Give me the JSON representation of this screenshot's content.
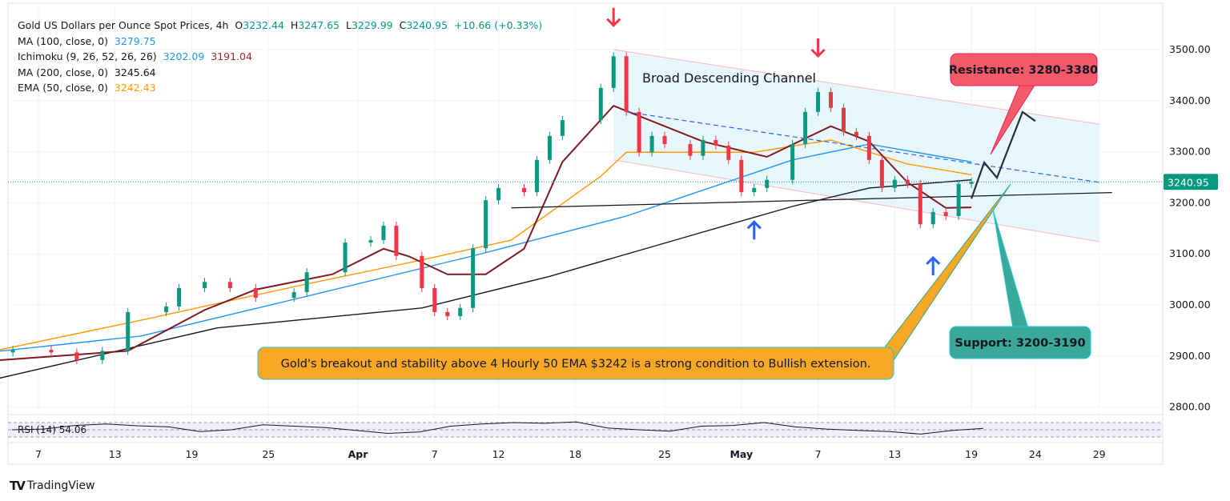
{
  "header": {
    "symbol": "Gold US Dollars per Ounce Spot Prices, 4h",
    "o_label": "O",
    "open": "3232.44",
    "h_label": "H",
    "high": "3247.65",
    "l_label": "L",
    "low": "3229.99",
    "c_label": "C",
    "close": "3240.95",
    "change": "+10.66 (+0.33%)"
  },
  "indicators": [
    {
      "label": "MA (100, close, 0)",
      "values": [
        "3279.75"
      ],
      "color": "#2196f3"
    },
    {
      "label": "Ichimoku (9, 26, 52, 26, 26)",
      "values": [
        "3202.09",
        "3191.04"
      ],
      "color": "#2196f3"
    },
    {
      "label": "MA (200, close, 0)",
      "values": [
        "3245.64"
      ],
      "color": "#131722"
    },
    {
      "label": "EMA (50, close, 0)",
      "values": [
        "3242.43"
      ],
      "color": "#ff9800"
    }
  ],
  "branding": "TradingView",
  "colors": {
    "up": "#089981",
    "down": "#f23645",
    "ma100": "#2196f3",
    "ma200": "#131722",
    "ema50": "#ff9800",
    "kijun": "#801922",
    "channel": "#e0f4f9",
    "resistance": "#f45b69",
    "support": "#3aa99a",
    "callout": "#f9a825"
  },
  "chart_data": {
    "type": "candlestick",
    "title": "Gold US Dollars per Ounce Spot Prices, 4h",
    "ylim": [
      2780,
      3560
    ],
    "y_ticks": [
      "3500.00",
      "3400.00",
      "3300.00",
      "3200.00",
      "3100.00",
      "3000.00",
      "2900.00",
      "2800.00"
    ],
    "x_ticks": [
      {
        "label": "7",
        "date": "Mar 7"
      },
      {
        "label": "13",
        "date": "Mar 13"
      },
      {
        "label": "19",
        "date": "Mar 19"
      },
      {
        "label": "25",
        "date": "Mar 25"
      },
      {
        "label": "Apr",
        "date": "Apr 1"
      },
      {
        "label": "7",
        "date": "Apr 7"
      },
      {
        "label": "12",
        "date": "Apr 12"
      },
      {
        "label": "18",
        "date": "Apr 18"
      },
      {
        "label": "25",
        "date": "Apr 25"
      },
      {
        "label": "May",
        "date": "May 1"
      },
      {
        "label": "7",
        "date": "May 7"
      },
      {
        "label": "13",
        "date": "May 13"
      },
      {
        "label": "19",
        "date": "May 19"
      },
      {
        "label": "24",
        "date": "May 24"
      },
      {
        "label": "29",
        "date": "May 29"
      }
    ],
    "last_price": "3240.95",
    "close": [
      [
        "Mar 5",
        2912
      ],
      [
        "Mar 8",
        2907
      ],
      [
        "Mar 10",
        2892
      ],
      [
        "Mar 12",
        2910
      ],
      [
        "Mar 14",
        2986
      ],
      [
        "Mar 17",
        2997
      ],
      [
        "Mar 18",
        3033
      ],
      [
        "Mar 20",
        3045
      ],
      [
        "Mar 22",
        3033
      ],
      [
        "Mar 24",
        3014
      ],
      [
        "Mar 27",
        3025
      ],
      [
        "Mar 28",
        3064
      ],
      [
        "Mar 31",
        3122
      ],
      [
        "Apr 2",
        3127
      ],
      [
        "Apr 3",
        3155
      ],
      [
        "Apr 4",
        3096
      ],
      [
        "Apr 6",
        3033
      ],
      [
        "Apr 7",
        2986
      ],
      [
        "Apr 8",
        2978
      ],
      [
        "Apr 9",
        2994
      ],
      [
        "Apr 10",
        3111
      ],
      [
        "Apr 11",
        3205
      ],
      [
        "Apr 12",
        3229
      ],
      [
        "Apr 14",
        3221
      ],
      [
        "Apr 15",
        3284
      ],
      [
        "Apr 16",
        3331
      ],
      [
        "Apr 17",
        3362
      ],
      [
        "Apr 20",
        3425
      ],
      [
        "Apr 21",
        3487
      ],
      [
        "Apr 22",
        3378
      ],
      [
        "Apr 23",
        3299
      ],
      [
        "Apr 24",
        3331
      ],
      [
        "Apr 25",
        3315
      ],
      [
        "Apr 27",
        3292
      ],
      [
        "Apr 28",
        3323
      ],
      [
        "Apr 29",
        3312
      ],
      [
        "Apr 30",
        3284
      ],
      [
        "May 1",
        3221
      ],
      [
        "May 2",
        3229
      ],
      [
        "May 3",
        3245
      ],
      [
        "May 5",
        3315
      ],
      [
        "May 6",
        3378
      ],
      [
        "May 7",
        3417
      ],
      [
        "May 8",
        3386
      ],
      [
        "May 9",
        3339
      ],
      [
        "May 10",
        3331
      ],
      [
        "May 11",
        3284
      ],
      [
        "May 12",
        3229
      ],
      [
        "May 13",
        3245
      ],
      [
        "May 14",
        3237
      ],
      [
        "May 15",
        3158
      ],
      [
        "May 16",
        3182
      ],
      [
        "May 17",
        3174
      ],
      [
        "May 18",
        3237
      ],
      [
        "May 19",
        3241
      ]
    ],
    "series": [
      {
        "name": "MA (100, close, 0)",
        "color": "#2196f3",
        "points": [
          [
            "Mar 3",
            2907
          ],
          [
            "Mar 15",
            2939
          ],
          [
            "Mar 28",
            3017
          ],
          [
            "Apr 10",
            3096
          ],
          [
            "Apr 22",
            3174
          ],
          [
            "May 5",
            3284
          ],
          [
            "May 11",
            3315
          ],
          [
            "May 19",
            3280
          ]
        ]
      },
      {
        "name": "MA (200, close, 0)",
        "color": "#131722",
        "points": [
          [
            "Mar 3",
            2851
          ],
          [
            "Mar 21",
            2955
          ],
          [
            "Apr 6",
            2994
          ],
          [
            "Apr 16",
            3056
          ],
          [
            "Apr 29",
            3150
          ],
          [
            "May 5",
            3193
          ],
          [
            "May 11",
            3229
          ],
          [
            "May 19",
            3245
          ]
        ]
      },
      {
        "name": "EMA (50, close, 0)",
        "color": "#ff9800",
        "points": [
          [
            "Mar 3",
            2907
          ],
          [
            "Mar 15",
            2970
          ],
          [
            "Mar 28",
            3041
          ],
          [
            "Apr 6",
            3088
          ],
          [
            "Apr 13",
            3127
          ],
          [
            "Apr 20",
            3252
          ],
          [
            "Apr 22",
            3299
          ],
          [
            "May 2",
            3299
          ],
          [
            "May 8",
            3323
          ],
          [
            "May 14",
            3276
          ],
          [
            "May 19",
            3255
          ]
        ]
      },
      {
        "name": "Ichimoku base",
        "color": "#801922",
        "points": [
          [
            "Mar 3",
            2890
          ],
          [
            "Mar 14",
            2910
          ],
          [
            "Mar 20",
            2990
          ],
          [
            "Mar 24",
            3030
          ],
          [
            "Mar 30",
            3060
          ],
          [
            "Apr 3",
            3110
          ],
          [
            "Apr 5",
            3095
          ],
          [
            "Apr 8",
            3060
          ],
          [
            "Apr 11",
            3060
          ],
          [
            "Apr 14",
            3110
          ],
          [
            "Apr 17",
            3280
          ],
          [
            "Apr 21",
            3390
          ],
          [
            "Apr 28",
            3320
          ],
          [
            "May 3",
            3290
          ],
          [
            "May 8",
            3350
          ],
          [
            "May 11",
            3320
          ],
          [
            "May 14",
            3240
          ],
          [
            "May 17",
            3190
          ],
          [
            "May 19",
            3191
          ]
        ]
      }
    ],
    "rsi": {
      "label": "RSI (14)",
      "value": "54.06",
      "values": [
        50,
        52,
        62,
        66,
        61,
        58,
        45,
        50,
        64,
        60,
        56,
        48,
        40,
        44,
        60,
        66,
        70,
        68,
        72,
        55,
        50,
        46,
        60,
        62,
        70,
        58,
        52,
        48,
        45,
        38,
        48,
        54
      ]
    },
    "annotations": {
      "channel_title": "Broad Descending Channel",
      "channel_upper": [
        [
          "Apr 21",
          3500
        ],
        [
          "May 29",
          3354
        ]
      ],
      "channel_lower": [
        [
          "Apr 21",
          3284
        ],
        [
          "May 29",
          3124
        ]
      ],
      "trend_dashed": [
        [
          "Apr 22",
          3378
        ],
        [
          "May 29",
          3240
        ]
      ],
      "support_line": [
        [
          "Apr 13",
          3190
        ],
        [
          "May 30",
          3220
        ]
      ],
      "projection": [
        [
          "May 19",
          3208
        ],
        [
          "May 20",
          3279
        ],
        [
          "May 21",
          3249
        ],
        [
          "May 23",
          3378
        ],
        [
          "May 24",
          3360
        ]
      ],
      "down_arrows": [
        [
          "Apr 21",
          3560
        ],
        [
          "May 7",
          3500
        ]
      ],
      "up_arrows": [
        [
          "May 2",
          3150
        ],
        [
          "May 16",
          3080
        ]
      ],
      "resistance": "Resistance: 3280-3380",
      "support": "Support: 3200-3190",
      "callout": "Gold's breakout and stability above 4 Hourly 50 EMA $3242 is a strong condition to Bullish extension."
    }
  }
}
